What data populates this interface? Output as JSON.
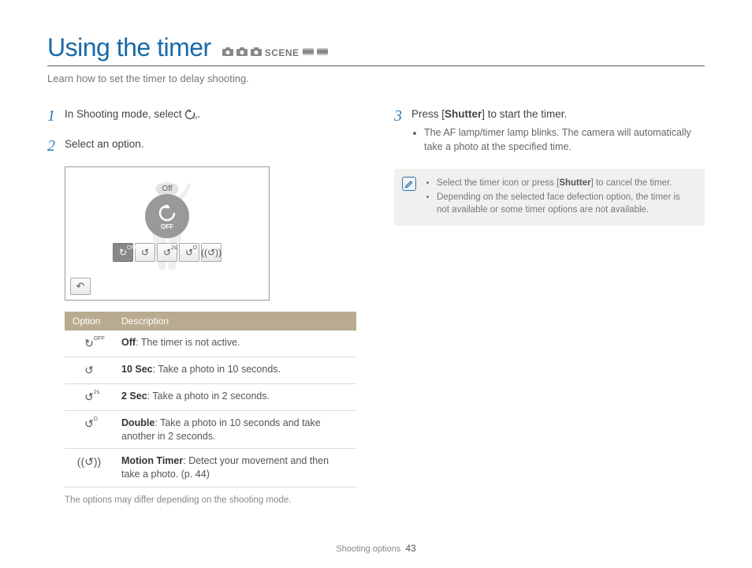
{
  "title": "Using the timer",
  "subtitle": "Learn how to set the timer to delay shooting.",
  "mode_icons": [
    "📷",
    "📷",
    "📷",
    "SCENE",
    "🎬",
    "🎬"
  ],
  "steps": {
    "1": {
      "num": "1",
      "text_before": "In Shooting mode, select ",
      "text_after": "."
    },
    "2": {
      "num": "2",
      "text": "Select an option."
    },
    "3": {
      "num": "3",
      "prefix": "Press [",
      "bold": "Shutter",
      "suffix": "] to start the timer.",
      "bullets": [
        "The AF lamp/timer lamp blinks. The camera will automatically take a photo at the specified time."
      ]
    }
  },
  "screenshot": {
    "off_label": "Off",
    "center_big_icon": "↻",
    "center_text": "OFF",
    "buttons": [
      {
        "icon": "↻",
        "sub": "OFF",
        "selected": true
      },
      {
        "icon": "↺",
        "sub": "",
        "selected": false
      },
      {
        "icon": "↺",
        "sub": "2s",
        "selected": false
      },
      {
        "icon": "↺",
        "sub": "D",
        "selected": false
      },
      {
        "icon": "((↺))",
        "sub": "",
        "selected": false
      }
    ],
    "back": "↶"
  },
  "table": {
    "headers": [
      "Option",
      "Description"
    ],
    "rows": [
      {
        "icon": "↻",
        "sup": "OFF",
        "bold": "Off",
        "rest": ": The timer is not active."
      },
      {
        "icon": "↺",
        "sup": "",
        "bold": "10 Sec",
        "rest": ": Take a photo in 10 seconds."
      },
      {
        "icon": "↺",
        "sup": "2s",
        "bold": "2 Sec",
        "rest": ": Take a photo in 2 seconds."
      },
      {
        "icon": "↺",
        "sup": "D",
        "bold": "Double",
        "rest": ": Take a photo in 10 seconds and take another in 2 seconds."
      },
      {
        "icon": "((↺))",
        "sup": "",
        "bold": "Motion Timer",
        "rest": ": Detect your movement and then take a photo. (p. 44)"
      }
    ],
    "note": "The options may differ depending on the shooting mode."
  },
  "info": {
    "items": [
      {
        "pre": "Select the timer icon or press [",
        "bold": "Shutter",
        "post": "] to cancel the timer."
      },
      {
        "pre": "Depending on the selected face defection option, the timer is not available or some timer options are not available.",
        "bold": "",
        "post": ""
      }
    ]
  },
  "footer": {
    "section": "Shooting options",
    "page": "43"
  }
}
